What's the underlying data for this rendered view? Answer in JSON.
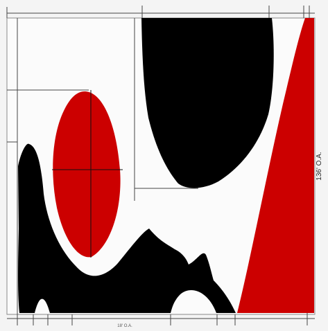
{
  "labels": {
    "vertical_dimension": "136' O.A.",
    "horizontal_dimension": "18' O.A."
  },
  "colors": {
    "fill_red": "#cc0000",
    "fill_black": "#000000",
    "background": "#fbfbfb",
    "line": "#444444"
  }
}
